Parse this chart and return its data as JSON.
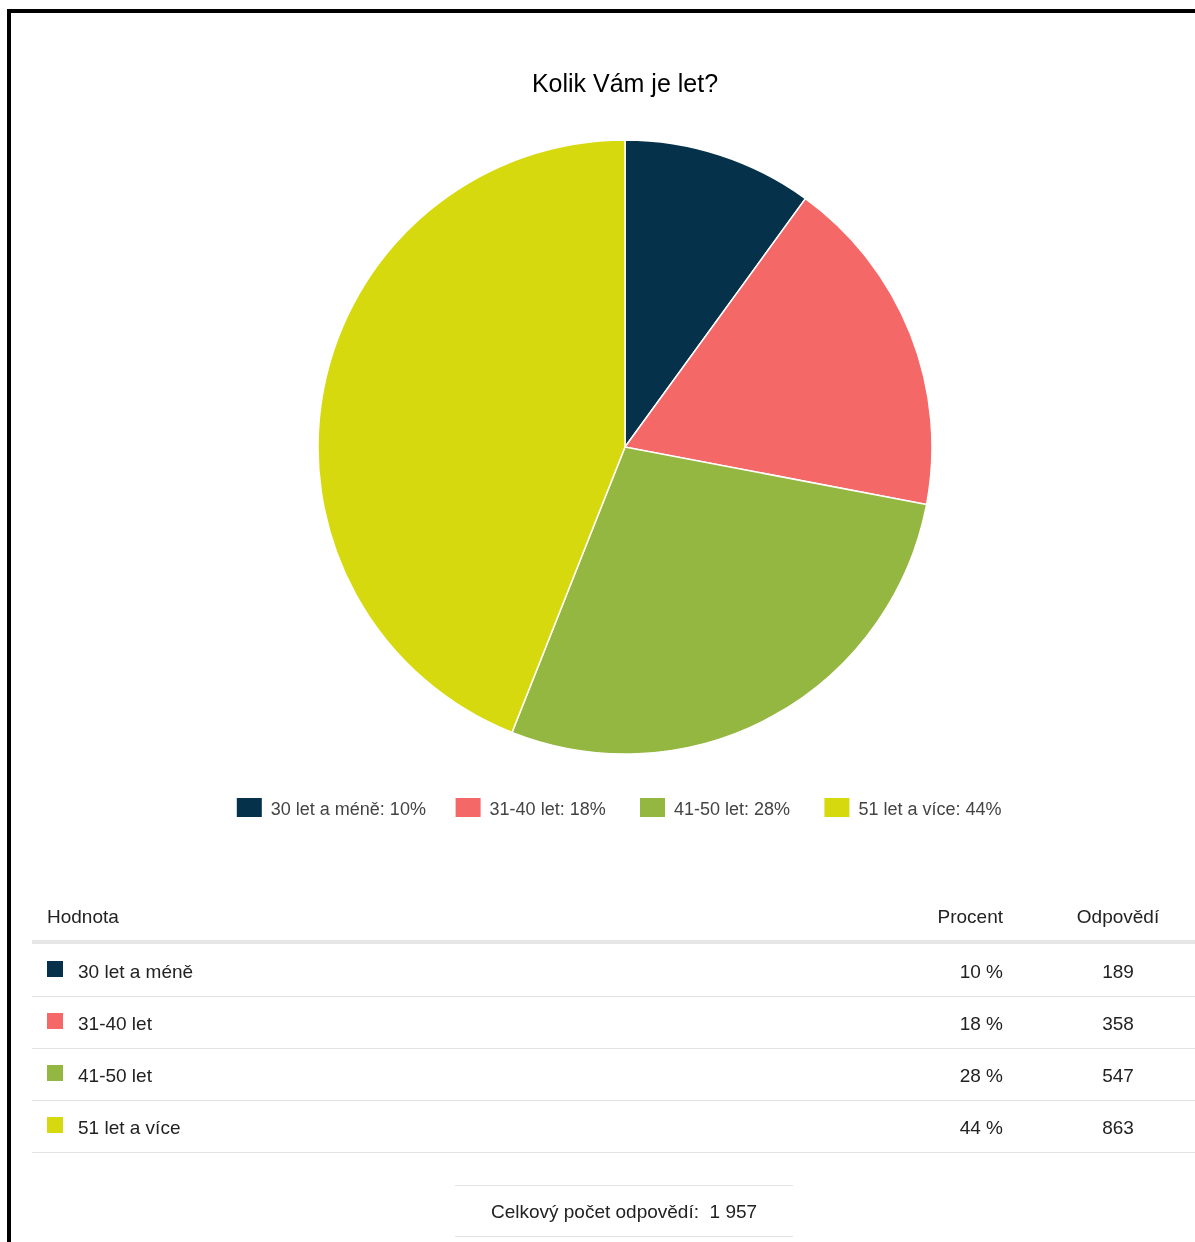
{
  "chart_data": {
    "type": "pie",
    "title": "Kolik Vám je let?",
    "categories": [
      "30 let a méně: 10%",
      "31-40 let: 18%",
      "41-50 let: 28%",
      "51 let a více: 44%"
    ],
    "values": [
      10,
      18,
      28,
      44
    ],
    "colors": [
      "#05324a",
      "#f46868",
      "#93b740",
      "#d7d90f"
    ],
    "legend": "bottom",
    "annotations": [
      "Hodnota",
      "Procent",
      "Odpovědí",
      "Celkový počet odpovědí:  1 957",
      {
        "text": "30 let a méně",
        "x": "30 let a méně: 10%"
      },
      {
        "text": "31-40 let",
        "x": "31-40 let: 18%"
      },
      {
        "text": "41-50 let",
        "x": "41-50 let: 28%"
      },
      {
        "text": "51 let a více",
        "x": "51 let a více: 44%"
      },
      {
        "text": "10 %",
        "x": "30 let a méně: 10%"
      },
      {
        "text": "18 %",
        "x": "31-40 let: 18%"
      },
      {
        "text": "28 %",
        "x": "41-50 let: 28%"
      },
      {
        "text": "44 %",
        "x": "51 let a více: 44%"
      },
      {
        "text": "189",
        "x": "30 let a méně: 10%"
      },
      {
        "text": "358",
        "x": "31-40 let: 18%"
      },
      {
        "text": "547",
        "x": "41-50 let: 28%"
      },
      {
        "text": "863",
        "x": "51 let a více: 44%"
      }
    ]
  }
}
